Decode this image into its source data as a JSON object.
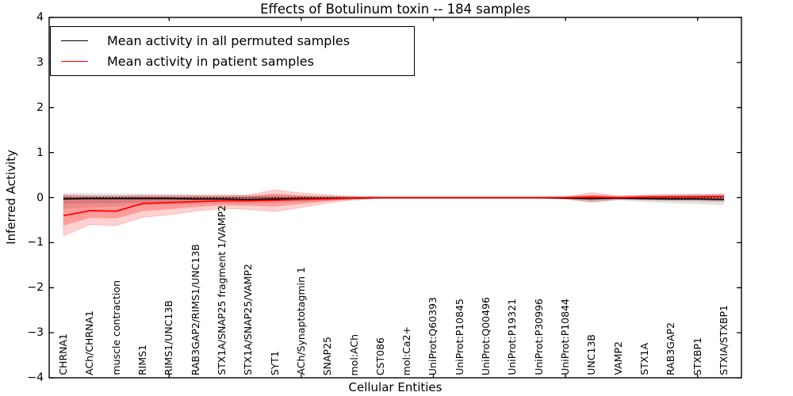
{
  "title": "Effects of Botulinum toxin -- 184 samples",
  "legend": {
    "items": [
      {
        "label": "Mean activity in all permuted samples",
        "color": "#000000"
      },
      {
        "label": "Mean activity in patient samples",
        "color": "#ff0000"
      }
    ]
  },
  "chart_data": {
    "type": "line",
    "title": "Effects of Botulinum toxin -- 184 samples",
    "xlabel": "Cellular Entities",
    "ylabel": "Inferred Activity",
    "ylim": [
      -4,
      4
    ],
    "yticks": [
      4,
      3,
      2,
      1,
      0,
      -1,
      -2,
      -3,
      -4
    ],
    "ytick_labels": [
      "4",
      "3",
      "2",
      "1",
      "0",
      "−1",
      "−2",
      "−3",
      "−4"
    ],
    "xticks_at": [
      5,
      10,
      15,
      20,
      25
    ],
    "zero_line": true,
    "grid": false,
    "legend_position": "upper left",
    "categories": [
      "CHRNA1",
      "ACh/CHRNA1",
      "muscle contraction",
      "RIMS1",
      "RIMS1/UNC13B",
      "RAB3GAP2/RIMS1/UNC13B",
      "STX1A/SNAP25 fragment 1/VAMP2",
      "STX1A/SNAP25/VAMP2",
      "SYT1",
      "ACh/Synaptotagmin 1",
      "SNAP25",
      "mol:ACh",
      "CST086",
      "mol:Ca2+",
      "UniProt:Q60393",
      "UniProt:P10845",
      "UniProt:Q00496",
      "UniProt:P19321",
      "UniProt:P30996",
      "UniProt:P10844",
      "UNC13B",
      "VAMP2",
      "STX1A",
      "RAB3GAP2",
      "STXBP1",
      "STXIA/STXBP1"
    ],
    "series": [
      {
        "name": "Mean activity in all permuted samples",
        "color": "#000000",
        "values": [
          -0.03,
          -0.02,
          -0.02,
          -0.02,
          -0.02,
          -0.03,
          -0.03,
          -0.04,
          -0.03,
          -0.02,
          -0.02,
          -0.01,
          0,
          0,
          0,
          0,
          0,
          0,
          0,
          -0.01,
          -0.02,
          -0.01,
          -0.02,
          -0.03,
          -0.03,
          -0.04
        ],
        "band_inner": {
          "upper": [
            0.06,
            0.05,
            0.05,
            0.05,
            0.04,
            0.04,
            0.03,
            0.03,
            0.03,
            0.03,
            0.02,
            0.02,
            0.01,
            0.01,
            0.01,
            0.01,
            0.01,
            0.01,
            0.01,
            0.02,
            0.04,
            0.02,
            0.03,
            0.04,
            0.04,
            0.05
          ],
          "lower": [
            -0.14,
            -0.13,
            -0.12,
            -0.11,
            -0.1,
            -0.09,
            -0.09,
            -0.09,
            -0.08,
            -0.07,
            -0.05,
            -0.04,
            -0.02,
            -0.02,
            -0.02,
            -0.02,
            -0.02,
            -0.02,
            -0.02,
            -0.03,
            -0.07,
            -0.04,
            -0.06,
            -0.08,
            -0.09,
            -0.1
          ]
        },
        "band_outer": {
          "upper": [
            0.11,
            0.1,
            0.09,
            0.09,
            0.08,
            0.07,
            0.07,
            0.06,
            0.06,
            0.05,
            0.04,
            0.03,
            0.02,
            0.02,
            0.02,
            0.02,
            0.02,
            0.02,
            0.02,
            0.03,
            0.07,
            0.04,
            0.06,
            0.07,
            0.08,
            0.08
          ],
          "lower": [
            -0.25,
            -0.22,
            -0.2,
            -0.18,
            -0.16,
            -0.15,
            -0.13,
            -0.13,
            -0.12,
            -0.1,
            -0.08,
            -0.05,
            -0.03,
            -0.03,
            -0.03,
            -0.03,
            -0.03,
            -0.03,
            -0.03,
            -0.04,
            -0.11,
            -0.06,
            -0.1,
            -0.13,
            -0.15,
            -0.17
          ]
        }
      },
      {
        "name": "Mean activity in patient samples",
        "color": "#ff0000",
        "values": [
          -0.4,
          -0.29,
          -0.3,
          -0.13,
          -0.11,
          -0.09,
          -0.07,
          -0.07,
          -0.06,
          -0.04,
          -0.03,
          -0.01,
          0,
          0,
          0,
          0,
          0,
          0,
          0,
          0,
          0.01,
          0,
          0.01,
          0.02,
          0.02,
          0.03
        ],
        "band_inner": {
          "upper": [
            0.02,
            0.01,
            0.01,
            0.02,
            0.02,
            0.02,
            0.02,
            0.03,
            0.09,
            0.05,
            0.03,
            0.01,
            0.01,
            0.01,
            0.01,
            0.01,
            0.01,
            0.01,
            0.01,
            0.01,
            0.06,
            0.02,
            0.04,
            0.04,
            0.05,
            0.05
          ],
          "lower": [
            -0.62,
            -0.45,
            -0.46,
            -0.3,
            -0.26,
            -0.21,
            -0.17,
            -0.18,
            -0.2,
            -0.14,
            -0.08,
            -0.03,
            -0.01,
            -0.01,
            -0.01,
            -0.01,
            -0.01,
            -0.01,
            -0.01,
            -0.01,
            -0.06,
            -0.02,
            -0.03,
            -0.03,
            -0.03,
            -0.03
          ]
        },
        "band_outer": {
          "upper": [
            0.06,
            0.04,
            0.04,
            0.05,
            0.05,
            0.05,
            0.05,
            0.06,
            0.17,
            0.1,
            0.06,
            0.03,
            0.01,
            0.01,
            0.01,
            0.01,
            0.01,
            0.01,
            0.01,
            0.02,
            0.11,
            0.04,
            0.06,
            0.07,
            0.07,
            0.08
          ],
          "lower": [
            -0.85,
            -0.6,
            -0.62,
            -0.44,
            -0.38,
            -0.3,
            -0.24,
            -0.26,
            -0.31,
            -0.22,
            -0.12,
            -0.05,
            -0.02,
            -0.02,
            -0.02,
            -0.02,
            -0.02,
            -0.02,
            -0.02,
            -0.03,
            -0.1,
            -0.04,
            -0.05,
            -0.06,
            -0.06,
            -0.07
          ]
        }
      }
    ]
  }
}
